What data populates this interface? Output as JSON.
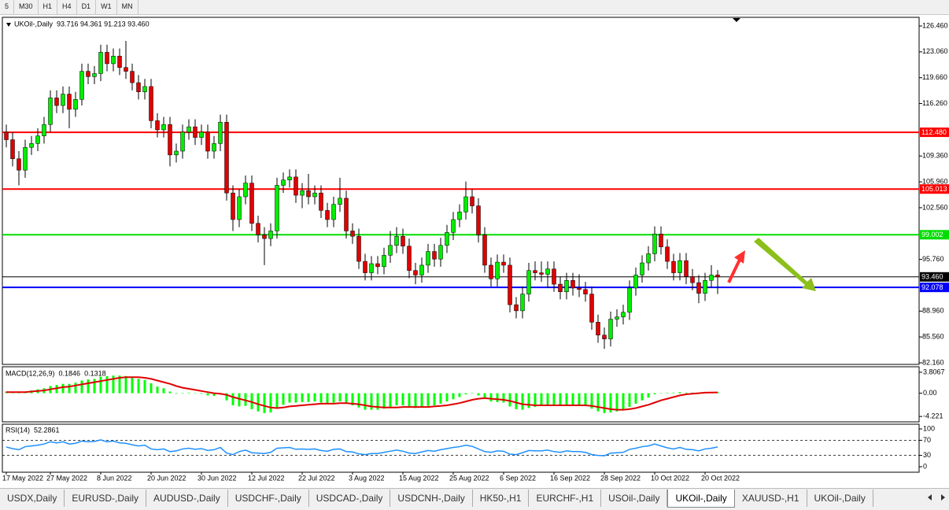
{
  "toolbar": {
    "periods": [
      "5",
      "M30",
      "H1",
      "H4",
      "D1",
      "W1",
      "MN"
    ]
  },
  "chart_data": [
    {
      "type": "candlestick",
      "title": "UKOil-,Daily",
      "info": "93.716 94.361 91.213 93.460",
      "categories": [
        "17 May 2022",
        null,
        null,
        null,
        null,
        null,
        null,
        "27 May 2022",
        null,
        null,
        null,
        null,
        null,
        null,
        null,
        "8 Jun 2022",
        null,
        null,
        null,
        null,
        null,
        null,
        null,
        "20 Jun 2022",
        null,
        null,
        null,
        null,
        null,
        null,
        null,
        "30 Jun 2022",
        null,
        null,
        null,
        null,
        null,
        null,
        null,
        "12 Jul 2022",
        null,
        null,
        null,
        null,
        null,
        null,
        null,
        "22 Jul 2022",
        null,
        null,
        null,
        null,
        null,
        null,
        null,
        "3 Aug 2022",
        null,
        null,
        null,
        null,
        null,
        null,
        null,
        "15 Aug 2022",
        null,
        null,
        null,
        null,
        null,
        null,
        null,
        "25 Aug 2022",
        null,
        null,
        null,
        null,
        null,
        null,
        null,
        "6 Sep 2022",
        null,
        null,
        null,
        null,
        null,
        null,
        null,
        "16 Sep 2022",
        null,
        null,
        null,
        null,
        null,
        null,
        null,
        "28 Sep 2022",
        null,
        null,
        null,
        null,
        null,
        null,
        null,
        "10 Oct 2022",
        null,
        null,
        null,
        null,
        null,
        null,
        null,
        "20 Oct 2022",
        null,
        null
      ],
      "open": [
        112.5,
        111.5,
        109.0,
        107.5,
        110.5,
        111.0,
        112.0,
        113.5,
        117.0,
        116.0,
        117.5,
        115.5,
        116.8,
        120.5,
        119.8,
        120.2,
        123.0,
        121.5,
        122.5,
        121.0,
        120.5,
        119.0,
        117.8,
        118.5,
        114.0,
        112.8,
        113.5,
        109.5,
        110.0,
        112.5,
        113.2,
        111.8,
        112.5,
        110.0,
        111.0,
        113.8,
        104.5,
        101.0,
        104.0,
        105.8,
        100.5,
        99.0,
        98.5,
        99.5,
        105.5,
        106.2,
        106.6,
        104.2,
        104.8,
        104.0,
        104.5,
        102.2,
        101.0,
        103.0,
        103.8,
        99.5,
        98.8,
        95.5,
        94.0,
        95.2,
        94.8,
        96.3,
        97.6,
        98.8,
        97.5,
        94.3,
        93.7,
        95.0,
        96.8,
        95.8,
        97.6,
        99.3,
        101.0,
        102.0,
        104.0,
        102.8,
        99.0,
        95.0,
        93.2,
        95.4,
        95.0,
        89.8,
        89.0,
        91.2,
        94.3,
        94.0,
        93.8,
        94.5,
        92.5,
        91.5,
        93.0,
        92.0,
        91.8,
        91.2,
        87.5,
        85.8,
        85.3,
        87.9,
        88.2,
        88.8,
        92.0,
        93.7,
        95.3,
        96.5,
        99.1,
        97.4,
        95.5,
        94.0,
        95.6,
        93.5,
        92.7,
        91.3,
        93.0,
        93.716
      ],
      "high": [
        113.5,
        112.5,
        110.0,
        111.5,
        112.0,
        113.0,
        114.5,
        118.0,
        118.0,
        118.5,
        118.5,
        117.8,
        121.5,
        121.5,
        121.2,
        124.0,
        124.0,
        123.5,
        123.5,
        124.5,
        121.5,
        120.0,
        119.5,
        119.5,
        115.0,
        114.5,
        114.5,
        111.0,
        113.5,
        114.2,
        114.2,
        113.5,
        113.5,
        112.0,
        114.8,
        114.8,
        105.5,
        105.0,
        106.8,
        106.8,
        101.5,
        100.0,
        100.5,
        106.5,
        107.2,
        107.6,
        107.6,
        105.8,
        107.0,
        105.5,
        105.5,
        103.2,
        104.0,
        106.5,
        104.8,
        100.5,
        99.8,
        96.5,
        96.2,
        96.2,
        97.3,
        99.5,
        100.0,
        99.8,
        98.5,
        95.3,
        96.0,
        97.8,
        97.8,
        98.6,
        100.3,
        102.0,
        103.0,
        106.0,
        105.0,
        103.8,
        100.0,
        96.0,
        96.4,
        96.4,
        96.0,
        90.8,
        92.2,
        95.3,
        95.5,
        95.5,
        95.5,
        95.5,
        93.5,
        94.0,
        94.0,
        93.8,
        92.8,
        92.2,
        88.5,
        86.8,
        88.9,
        89.2,
        89.8,
        93.0,
        94.7,
        96.3,
        97.5,
        100.1,
        100.1,
        98.4,
        96.5,
        96.6,
        96.6,
        94.5,
        93.7,
        94.0,
        95.0,
        94.361
      ],
      "low": [
        110.5,
        108.0,
        105.5,
        106.5,
        109.5,
        110.0,
        111.0,
        112.5,
        115.0,
        115.0,
        113.0,
        114.5,
        116.0,
        118.8,
        118.8,
        119.2,
        120.5,
        120.5,
        120.0,
        119.5,
        118.0,
        116.8,
        116.8,
        113.0,
        111.8,
        111.8,
        108.0,
        108.5,
        109.0,
        111.5,
        110.8,
        110.8,
        109.0,
        109.0,
        110.0,
        103.5,
        99.5,
        100.0,
        103.0,
        99.5,
        98.0,
        95.0,
        97.5,
        98.5,
        104.5,
        105.2,
        103.2,
        102.5,
        103.0,
        103.0,
        101.2,
        100.0,
        100.0,
        102.0,
        98.5,
        97.8,
        94.5,
        93.0,
        93.0,
        93.8,
        93.8,
        95.3,
        96.6,
        96.5,
        93.3,
        92.5,
        92.7,
        94.0,
        94.8,
        94.8,
        96.6,
        98.3,
        100.0,
        101.0,
        101.8,
        98.0,
        94.0,
        92.2,
        92.2,
        94.0,
        88.8,
        88.0,
        88.0,
        90.2,
        93.0,
        92.8,
        92.0,
        91.5,
        90.5,
        90.5,
        91.0,
        90.8,
        90.2,
        86.5,
        84.8,
        84.0,
        84.3,
        86.9,
        87.2,
        87.8,
        91.0,
        92.7,
        94.3,
        95.5,
        96.4,
        94.5,
        93.0,
        93.0,
        92.5,
        91.7,
        90.0,
        90.3,
        92.0,
        91.213
      ],
      "close": [
        111.5,
        109.0,
        107.5,
        110.5,
        111.0,
        112.0,
        113.5,
        117.0,
        116.0,
        117.5,
        115.5,
        116.8,
        120.5,
        119.8,
        120.2,
        123.0,
        121.5,
        122.5,
        121.0,
        120.5,
        119.0,
        117.8,
        118.5,
        114.0,
        112.8,
        113.5,
        109.5,
        110.0,
        112.5,
        113.2,
        111.8,
        112.5,
        110.0,
        111.0,
        113.8,
        104.5,
        101.0,
        104.0,
        105.8,
        100.5,
        99.0,
        98.5,
        99.5,
        105.5,
        106.2,
        106.6,
        104.2,
        104.8,
        104.0,
        104.5,
        102.2,
        101.0,
        103.0,
        103.8,
        99.5,
        98.8,
        95.5,
        94.0,
        95.2,
        94.8,
        96.3,
        97.6,
        98.8,
        97.5,
        94.3,
        93.7,
        95.0,
        96.8,
        95.8,
        97.6,
        99.3,
        101.0,
        102.0,
        104.0,
        102.8,
        99.0,
        95.0,
        93.2,
        95.4,
        95.0,
        89.8,
        89.0,
        91.2,
        94.3,
        94.0,
        93.8,
        94.5,
        92.5,
        91.5,
        93.0,
        92.0,
        91.8,
        91.2,
        87.5,
        85.8,
        85.3,
        87.9,
        88.2,
        88.8,
        92.0,
        93.7,
        95.3,
        96.5,
        99.1,
        97.4,
        95.5,
        94.0,
        95.6,
        93.5,
        92.7,
        91.3,
        93.0,
        93.7,
        93.46
      ],
      "up_color": "#00ee00",
      "down_color": "#e00000",
      "ylim": [
        81.95,
        127.6
      ],
      "yticks": [
        {
          "value": 126.46,
          "label": "126.460"
        },
        {
          "value": 123.06,
          "label": "123.060"
        },
        {
          "value": 119.66,
          "label": "119.660"
        },
        {
          "value": 116.26,
          "label": "116.260"
        },
        {
          "value": 109.36,
          "label": "109.360"
        },
        {
          "value": 105.96,
          "label": "105.960"
        },
        {
          "value": 102.56,
          "label": "102.560"
        },
        {
          "value": 95.76,
          "label": "95.760"
        },
        {
          "value": 88.96,
          "label": "88.960"
        },
        {
          "value": 85.56,
          "label": "85.560"
        },
        {
          "value": 82.16,
          "label": "82.160"
        }
      ],
      "levels": [
        {
          "value": 112.48,
          "label": "112.480",
          "color": "#ff0000"
        },
        {
          "value": 105.013,
          "label": "105.013",
          "color": "#ff0000"
        },
        {
          "value": 99.002,
          "label": "99.002",
          "color": "#00dd00"
        },
        {
          "value": 93.46,
          "label": "93.460",
          "color": "#000000"
        },
        {
          "value": 92.078,
          "label": "92.078",
          "color": "#0000ff"
        }
      ]
    },
    {
      "type": "macd",
      "title": "MACD(12,26,9)",
      "legend_values": [
        0.1846,
        0.1318
      ],
      "histogram": {
        "color": "#00ff00",
        "values": [
          0.3,
          0.2,
          0.1,
          0.3,
          0.5,
          0.7,
          0.9,
          1.3,
          1.5,
          1.7,
          1.7,
          1.9,
          2.3,
          2.5,
          2.6,
          3.0,
          3.1,
          3.2,
          3.2,
          3.1,
          2.9,
          2.6,
          2.4,
          1.8,
          1.2,
          0.9,
          0.3,
          -0.1,
          0.0,
          0.1,
          0.0,
          -0.1,
          -0.4,
          -0.5,
          -0.2,
          -1.3,
          -2.2,
          -2.4,
          -2.3,
          -2.9,
          -3.3,
          -3.6,
          -3.5,
          -2.7,
          -2.1,
          -1.7,
          -1.7,
          -1.6,
          -1.6,
          -1.5,
          -1.7,
          -1.9,
          -1.7,
          -1.5,
          -1.9,
          -2.2,
          -2.6,
          -3.0,
          -3.0,
          -3.0,
          -2.8,
          -2.5,
          -2.2,
          -2.2,
          -2.5,
          -2.7,
          -2.6,
          -2.3,
          -2.2,
          -1.9,
          -1.5,
          -1.1,
          -0.7,
          -0.2,
          0.0,
          -0.4,
          -1.0,
          -1.5,
          -1.6,
          -1.7,
          -2.4,
          -2.9,
          -3.0,
          -2.7,
          -2.5,
          -2.3,
          -2.1,
          -2.2,
          -2.3,
          -2.2,
          -2.2,
          -2.2,
          -2.3,
          -2.8,
          -3.3,
          -3.6,
          -3.5,
          -3.3,
          -3.0,
          -2.5,
          -1.9,
          -1.3,
          -0.8,
          -0.2,
          0.0,
          0.1,
          0.1,
          0.2,
          0.1,
          0.1,
          0.0,
          0.1,
          0.2,
          0.1846
        ]
      },
      "signal": {
        "color": "#e00000",
        "values": [
          0.2,
          0.2,
          0.2,
          0.2,
          0.3,
          0.4,
          0.5,
          0.7,
          0.9,
          1.1,
          1.2,
          1.4,
          1.6,
          1.8,
          2.0,
          2.2,
          2.4,
          2.6,
          2.8,
          2.9,
          2.9,
          2.9,
          2.8,
          2.6,
          2.3,
          2.0,
          1.7,
          1.3,
          1.0,
          0.8,
          0.6,
          0.4,
          0.2,
          0.0,
          -0.1,
          -0.3,
          -0.7,
          -1.0,
          -1.3,
          -1.6,
          -2.0,
          -2.3,
          -2.6,
          -2.7,
          -2.6,
          -2.4,
          -2.3,
          -2.2,
          -2.1,
          -2.0,
          -1.9,
          -1.9,
          -1.9,
          -1.8,
          -1.8,
          -1.9,
          -2.0,
          -2.2,
          -2.4,
          -2.5,
          -2.6,
          -2.6,
          -2.6,
          -2.5,
          -2.5,
          -2.5,
          -2.5,
          -2.5,
          -2.4,
          -2.3,
          -2.2,
          -2.0,
          -1.8,
          -1.5,
          -1.2,
          -1.0,
          -0.9,
          -1.0,
          -1.1,
          -1.2,
          -1.4,
          -1.7,
          -2.0,
          -2.1,
          -2.2,
          -2.2,
          -2.2,
          -2.2,
          -2.2,
          -2.2,
          -2.2,
          -2.2,
          -2.2,
          -2.3,
          -2.5,
          -2.7,
          -2.9,
          -3.0,
          -3.0,
          -2.9,
          -2.7,
          -2.4,
          -2.1,
          -1.7,
          -1.3,
          -1.0,
          -0.7,
          -0.4,
          -0.2,
          -0.1,
          0.0,
          0.1,
          0.12,
          0.1318
        ]
      },
      "ylim": [
        -5.2,
        4.8
      ],
      "yticks": [
        3.8067,
        {
          "value": 0,
          "label": "0.00"
        },
        -4.221
      ]
    },
    {
      "type": "line",
      "title": "RSI(14)",
      "legend_values": [
        52.2861
      ],
      "color": "#1e90ff",
      "values": [
        52,
        48,
        45,
        53,
        55,
        57,
        60,
        66,
        63,
        66,
        60,
        62,
        68,
        66,
        67,
        71,
        66,
        68,
        63,
        62,
        58,
        55,
        57,
        47,
        45,
        47,
        40,
        42,
        47,
        49,
        46,
        48,
        43,
        45,
        51,
        36,
        32,
        40,
        44,
        37,
        36,
        35,
        38,
        49,
        50,
        51,
        46,
        47,
        46,
        47,
        43,
        41,
        46,
        47,
        40,
        39,
        34,
        32,
        35,
        35,
        38,
        41,
        44,
        41,
        36,
        35,
        39,
        43,
        41,
        45,
        48,
        51,
        53,
        57,
        54,
        47,
        40,
        38,
        42,
        41,
        33,
        32,
        37,
        43,
        42,
        42,
        44,
        40,
        38,
        42,
        40,
        40,
        38,
        32,
        30,
        29,
        36,
        37,
        38,
        46,
        49,
        53,
        55,
        60,
        55,
        50,
        47,
        51,
        46,
        45,
        42,
        47,
        49,
        52.2861
      ],
      "ylim": [
        0,
        100
      ],
      "yticks": [
        100,
        70,
        30,
        0
      ],
      "dashed_levels": [
        70,
        30
      ]
    }
  ],
  "tabs": {
    "items": [
      "USDX,Daily",
      "EURUSD-,Daily",
      "AUDUSD-,Daily",
      "USDCHF-,Daily",
      "USDCAD-,Daily",
      "USDCNH-,Daily",
      "HK50-,H1",
      "EURCHF-,H1",
      "USOil-,Daily",
      "UKOil-,Daily",
      "XAUUSD-,H1",
      "UKOil-,Daily"
    ],
    "active": 9
  }
}
